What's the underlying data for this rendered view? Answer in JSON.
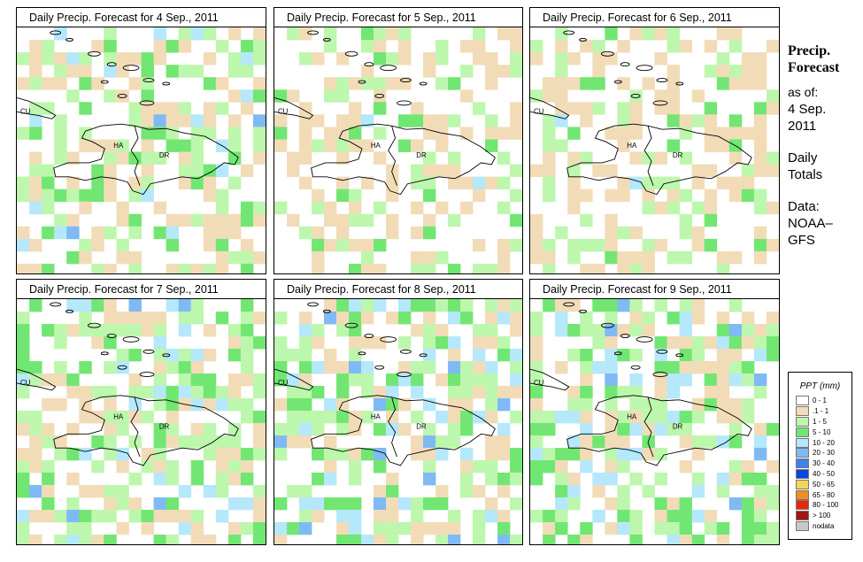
{
  "panels": [
    {
      "title": "Daily Precip. Forecast for  4 Sep., 2011",
      "fill_level": "moderate"
    },
    {
      "title": "Daily Precip. Forecast for  5 Sep., 2011",
      "fill_level": "light"
    },
    {
      "title": "Daily Precip. Forecast for  6 Sep., 2011",
      "fill_level": "light"
    },
    {
      "title": "Daily Precip. Forecast for  7 Sep., 2011",
      "fill_level": "moderate"
    },
    {
      "title": "Daily Precip. Forecast for  8 Sep., 2011",
      "fill_level": "heavy"
    },
    {
      "title": "Daily Precip. Forecast for  9 Sep., 2011",
      "fill_level": "heavy"
    }
  ],
  "region_labels": {
    "cuba": "CU",
    "haiti": "HA",
    "dominican_republic": "DR"
  },
  "sidebar": {
    "title_line1": "Precip.",
    "title_line2": "Forecast",
    "asof_label": "as of:",
    "date_line1": "4 Sep.",
    "date_line2": "2011",
    "totals_line1": "Daily",
    "totals_line2": "Totals",
    "source_line1": "Data:",
    "source_line2": "NOAA–",
    "source_line3": "GFS"
  },
  "legend": {
    "title": "PPT (mm)",
    "items": [
      {
        "label": "0 - 1",
        "color": "#ffffff"
      },
      {
        "label": ".1 - 1",
        "color": "#f2dcb8"
      },
      {
        "label": "1 - 5",
        "color": "#bdf7ad"
      },
      {
        "label": "5 - 10",
        "color": "#72e672"
      },
      {
        "label": "10 - 20",
        "color": "#b4e8fa"
      },
      {
        "label": "20 - 30",
        "color": "#7fbaf5"
      },
      {
        "label": "30 - 40",
        "color": "#3c82eb"
      },
      {
        "label": "40 - 50",
        "color": "#0a46dc"
      },
      {
        "label": "50 - 65",
        "color": "#f5d45a"
      },
      {
        "label": "65 - 80",
        "color": "#f58c1e"
      },
      {
        "label": "80 - 100",
        "color": "#e6280a"
      },
      {
        "label": "> 100",
        "color": "#a01414"
      },
      {
        "label": "nodata",
        "color": "#c8c8c8"
      }
    ]
  }
}
